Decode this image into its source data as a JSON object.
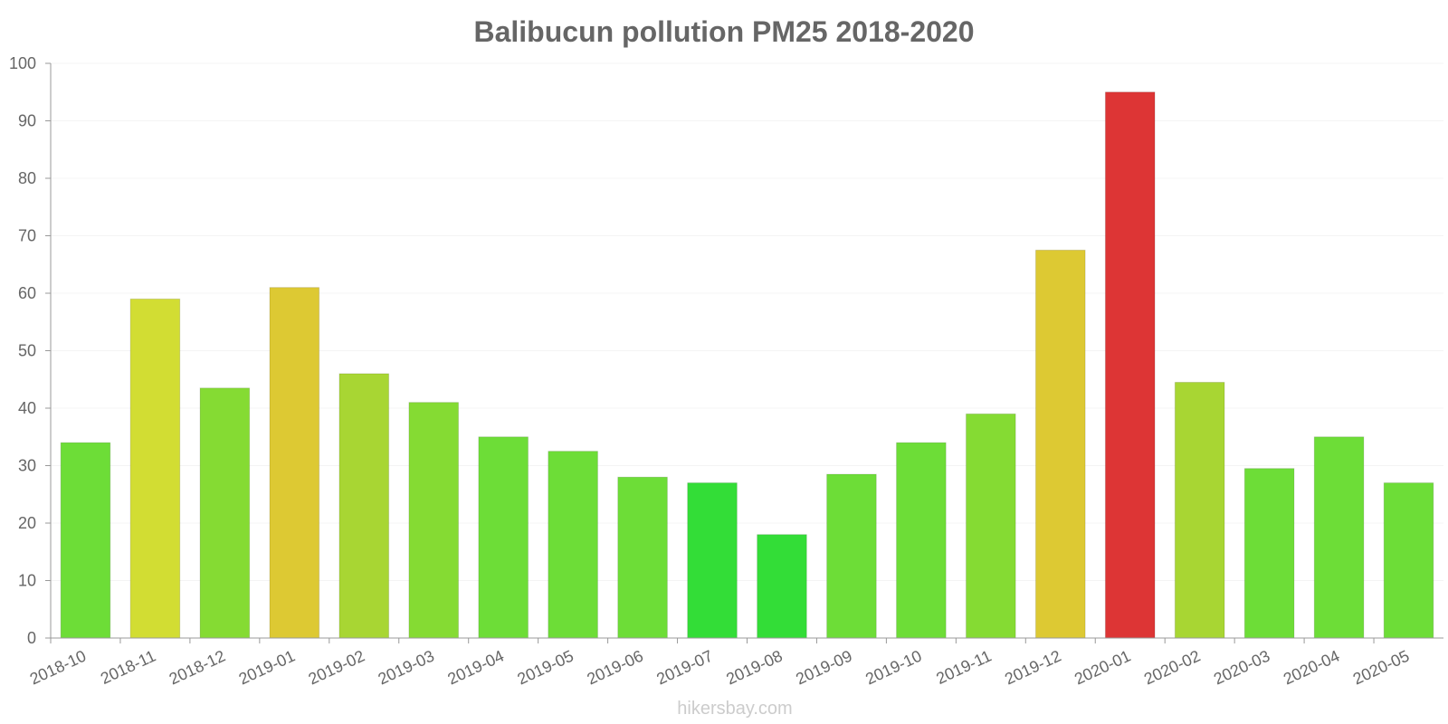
{
  "chart_data": {
    "type": "bar",
    "title": "Balibucun pollution PM25 2018-2020",
    "xlabel": "",
    "ylabel": "",
    "ylim": [
      0,
      100
    ],
    "yticks": [
      0,
      10,
      20,
      30,
      40,
      50,
      60,
      70,
      80,
      90,
      100
    ],
    "grid": true,
    "categories": [
      "2018-10",
      "2018-11",
      "2018-12",
      "2019-01",
      "2019-02",
      "2019-03",
      "2019-04",
      "2019-05",
      "2019-06",
      "2019-07",
      "2019-08",
      "2019-09",
      "2019-10",
      "2019-11",
      "2019-12",
      "2020-01",
      "2020-02",
      "2020-03",
      "2020-04",
      "2020-05"
    ],
    "values": [
      34,
      59,
      43.5,
      61,
      46,
      41,
      35,
      32.5,
      28,
      27,
      18,
      28.5,
      34,
      39,
      67.5,
      95,
      44.5,
      29.5,
      35,
      27
    ],
    "colors": [
      "#6ddd37",
      "#d2dd33",
      "#85db33",
      "#ddc933",
      "#a8d633",
      "#85db33",
      "#6ddd37",
      "#6ddd37",
      "#6ddd37",
      "#33dd37",
      "#33dd37",
      "#6ddd37",
      "#6ddd37",
      "#85db33",
      "#ddc933",
      "#dd3535",
      "#a8d633",
      "#6ddd37",
      "#6ddd37",
      "#6ddd37"
    ]
  },
  "watermark": "hikersbay.com"
}
